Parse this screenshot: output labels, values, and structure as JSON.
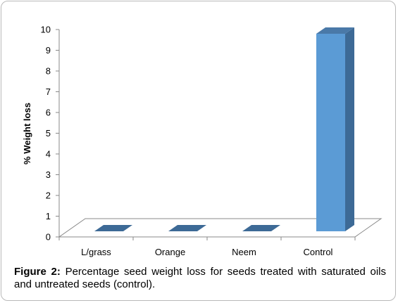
{
  "chart_data": {
    "type": "bar",
    "style": "3d-column",
    "categories": [
      "L/grass",
      "Orange",
      "Neem",
      "Control"
    ],
    "values": [
      0,
      0,
      0,
      10
    ],
    "ylabel": "% Weight loss",
    "xlabel": "",
    "ylim": [
      0,
      10
    ],
    "yticks": [
      "0",
      "1",
      "2",
      "3",
      "4",
      "5",
      "6",
      "7",
      "8",
      "9",
      "10"
    ],
    "grid": false,
    "legend": "none",
    "colors": {
      "front": "#5b9bd5",
      "side": "#3d6a96",
      "top": "#4a79a8",
      "floor": "#ffffff",
      "axis": "#888888"
    }
  },
  "caption": {
    "label": "Figure 2:",
    "text": " Percentage seed weight loss for seeds treated with saturated oils and untreated seeds (control)."
  }
}
